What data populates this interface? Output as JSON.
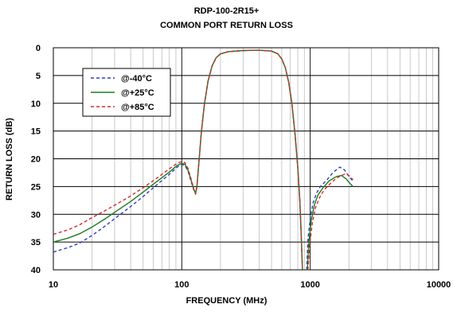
{
  "chart_data": {
    "type": "line",
    "title": "RDP-100-2R15+",
    "subtitle": "COMMON PORT RETURN LOSS",
    "xlabel": "FREQUENCY (MHz)",
    "ylabel": "RETURN LOSS (dB)",
    "xscale": "log",
    "xlim": [
      10,
      10000
    ],
    "ylim": [
      0,
      40
    ],
    "y_inverted": true,
    "xticks": [
      10,
      100,
      1000,
      10000
    ],
    "xtick_labels": [
      "10",
      "100",
      "1000",
      "10000"
    ],
    "yticks": [
      0,
      5,
      10,
      15,
      20,
      25,
      30,
      35,
      40
    ],
    "ytick_labels": [
      "0",
      "5",
      "10",
      "15",
      "20",
      "25",
      "30",
      "35",
      "40"
    ],
    "grid": true,
    "legend_position": "top-left",
    "series": [
      {
        "name": "@-40°C",
        "color": "#2e3fbf",
        "style": "dashed",
        "segments": [
          [
            [
              10,
              36.8
            ],
            [
              13,
              36
            ],
            [
              16,
              35.2
            ],
            [
              20,
              33.8
            ],
            [
              25,
              32.2
            ],
            [
              32,
              30.3
            ],
            [
              40,
              28.6
            ],
            [
              50,
              26.8
            ],
            [
              63,
              24.8
            ],
            [
              80,
              22.8
            ],
            [
              92,
              21.5
            ],
            [
              100,
              21.0
            ],
            [
              106,
              21.2
            ],
            [
              112,
              22.3
            ],
            [
              118,
              24.0
            ],
            [
              124,
              25.6
            ],
            [
              128,
              26.2
            ],
            [
              131,
              25.0
            ],
            [
              136,
              20.5
            ],
            [
              142,
              15.2
            ],
            [
              150,
              10.2
            ],
            [
              160,
              6.0
            ],
            [
              172,
              3.3
            ],
            [
              185,
              1.8
            ],
            [
              200,
              1.1
            ],
            [
              230,
              0.7
            ],
            [
              300,
              0.5
            ],
            [
              400,
              0.45
            ],
            [
              500,
              0.6
            ],
            [
              560,
              1.1
            ],
            [
              600,
              2.0
            ],
            [
              640,
              3.6
            ],
            [
              680,
              6.2
            ],
            [
              720,
              10.0
            ],
            [
              760,
              15.3
            ],
            [
              800,
              21.5
            ],
            [
              830,
              27.5
            ],
            [
              850,
              33.5
            ],
            [
              870,
              40
            ]
          ],
          [
            [
              940,
              40
            ],
            [
              960,
              34.5
            ],
            [
              1000,
              30.8
            ],
            [
              1050,
              28.0
            ],
            [
              1120,
              26.2
            ],
            [
              1200,
              25.0
            ],
            [
              1350,
              23.8
            ],
            [
              1500,
              22.5
            ],
            [
              1700,
              21.5
            ],
            [
              1850,
              22.0
            ],
            [
              2000,
              23.2
            ],
            [
              2150,
              24.0
            ]
          ]
        ]
      },
      {
        "name": "@+25°C",
        "color": "#1f7a1f",
        "style": "solid",
        "segments": [
          [
            [
              10,
              35.0
            ],
            [
              13,
              34.3
            ],
            [
              16,
              33.5
            ],
            [
              20,
              32.3
            ],
            [
              25,
              30.9
            ],
            [
              32,
              29.2
            ],
            [
              40,
              27.7
            ],
            [
              50,
              26.0
            ],
            [
              63,
              24.2
            ],
            [
              80,
              22.4
            ],
            [
              92,
              21.2
            ],
            [
              100,
              20.8
            ],
            [
              106,
              21.0
            ],
            [
              112,
              22.1
            ],
            [
              118,
              23.8
            ],
            [
              124,
              25.5
            ],
            [
              128,
              26.2
            ],
            [
              131,
              25.0
            ],
            [
              136,
              20.5
            ],
            [
              142,
              15.2
            ],
            [
              150,
              10.2
            ],
            [
              160,
              6.0
            ],
            [
              172,
              3.3
            ],
            [
              185,
              1.8
            ],
            [
              200,
              1.1
            ],
            [
              230,
              0.7
            ],
            [
              300,
              0.5
            ],
            [
              400,
              0.45
            ],
            [
              500,
              0.6
            ],
            [
              560,
              1.1
            ],
            [
              600,
              2.0
            ],
            [
              640,
              3.6
            ],
            [
              680,
              6.2
            ],
            [
              720,
              10.0
            ],
            [
              760,
              15.3
            ],
            [
              800,
              21.5
            ],
            [
              830,
              27.5
            ],
            [
              850,
              33.5
            ],
            [
              870,
              40
            ]
          ],
          [
            [
              950,
              40
            ],
            [
              975,
              35.0
            ],
            [
              1020,
              31.0
            ],
            [
              1080,
              28.2
            ],
            [
              1150,
              26.5
            ],
            [
              1250,
              25.3
            ],
            [
              1400,
              24.0
            ],
            [
              1600,
              23.2
            ],
            [
              1750,
              23.0
            ],
            [
              1900,
              23.6
            ],
            [
              2050,
              24.5
            ],
            [
              2150,
              25.0
            ]
          ]
        ]
      },
      {
        "name": "@+85°C",
        "color": "#d62a2a",
        "style": "dashed",
        "segments": [
          [
            [
              10,
              33.6
            ],
            [
              13,
              32.8
            ],
            [
              16,
              31.9
            ],
            [
              20,
              30.6
            ],
            [
              25,
              29.4
            ],
            [
              32,
              28.0
            ],
            [
              40,
              26.7
            ],
            [
              50,
              25.2
            ],
            [
              63,
              23.6
            ],
            [
              80,
              21.8
            ],
            [
              92,
              20.8
            ],
            [
              100,
              20.5
            ],
            [
              106,
              20.7
            ],
            [
              112,
              21.8
            ],
            [
              118,
              23.6
            ],
            [
              124,
              25.4
            ],
            [
              128,
              26.4
            ],
            [
              131,
              25.2
            ],
            [
              136,
              20.6
            ],
            [
              142,
              15.3
            ],
            [
              150,
              10.3
            ],
            [
              160,
              6.1
            ],
            [
              172,
              3.3
            ],
            [
              185,
              1.8
            ],
            [
              200,
              1.1
            ],
            [
              230,
              0.7
            ],
            [
              300,
              0.5
            ],
            [
              400,
              0.45
            ],
            [
              500,
              0.6
            ],
            [
              560,
              1.1
            ],
            [
              600,
              2.0
            ],
            [
              640,
              3.6
            ],
            [
              680,
              6.2
            ],
            [
              720,
              10.0
            ],
            [
              760,
              15.3
            ],
            [
              800,
              21.5
            ],
            [
              830,
              27.5
            ],
            [
              850,
              33.5
            ],
            [
              870,
              40
            ]
          ],
          [
            [
              960,
              40
            ],
            [
              990,
              35.5
            ],
            [
              1040,
              31.5
            ],
            [
              1100,
              28.8
            ],
            [
              1180,
              27.0
            ],
            [
              1280,
              25.6
            ],
            [
              1430,
              24.5
            ],
            [
              1600,
              23.5
            ],
            [
              1750,
              23.0
            ],
            [
              1900,
              22.7
            ],
            [
              2050,
              23.2
            ],
            [
              2150,
              23.8
            ]
          ]
        ]
      }
    ]
  }
}
